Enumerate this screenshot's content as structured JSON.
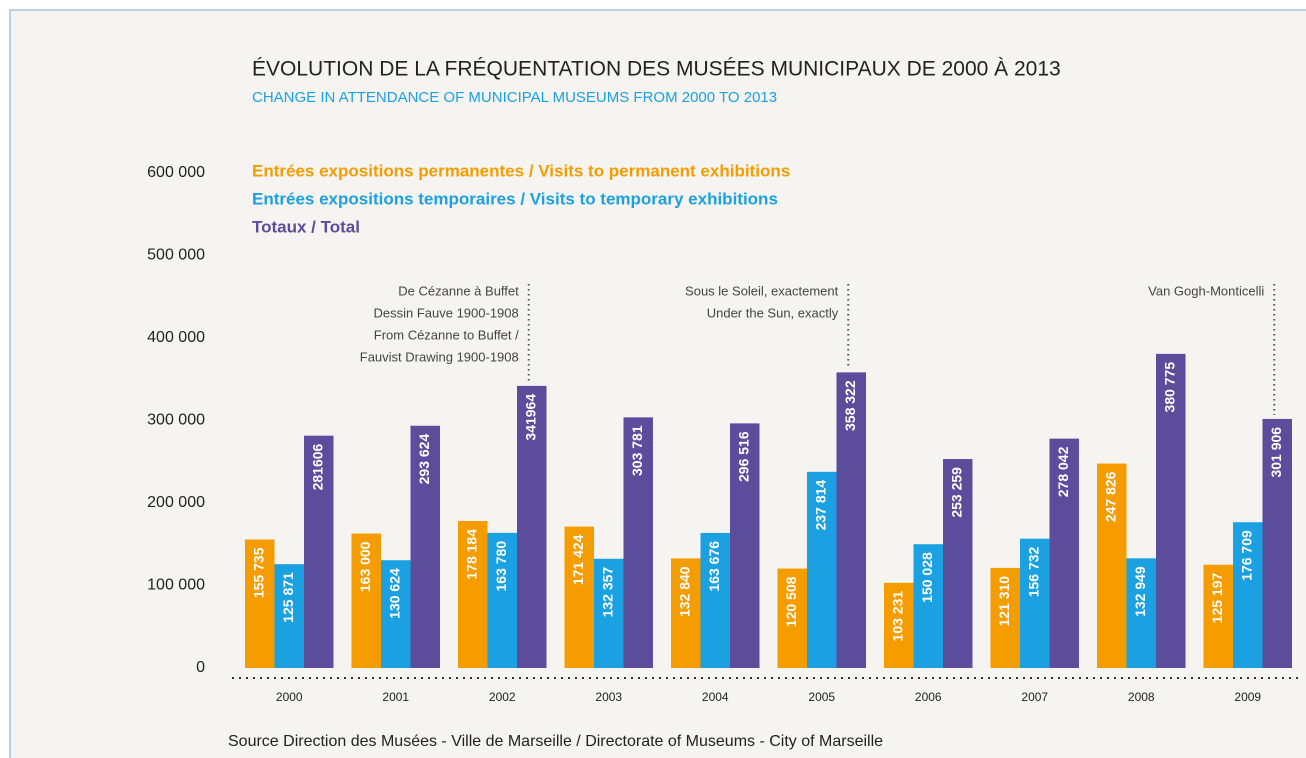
{
  "chart_data": {
    "type": "bar",
    "title": "ÉVOLUTION DE LA FRÉQUENTATION DES MUSÉES MUNICIPAUX DE 2000 À 2013",
    "subtitle": "CHANGE IN ATTENDANCE OF MUNICIPAL MUSEUMS FROM 2000 TO 2013",
    "source": "Source Direction des Musées - Ville de Marseille / Directorate of Museums - City of Marseille",
    "categories": [
      "2000",
      "2001",
      "2002",
      "2003",
      "2004",
      "2005",
      "2006",
      "2007",
      "2008",
      "2009"
    ],
    "series": [
      {
        "name": "Entrées expositions permanentes / Visits to permanent exhibitions",
        "color": "#f59c00",
        "values": [
          155735,
          163000,
          178184,
          171424,
          132840,
          120508,
          103231,
          121310,
          247826,
          125197
        ],
        "value_labels": [
          "155 735",
          "163 000",
          "178 184",
          "171 424",
          "132 840",
          "120 508",
          "103 231",
          "121 310",
          "247 826",
          "125 197"
        ]
      },
      {
        "name": "Entrées expositions temporaires / Visits to temporary exhibitions",
        "color": "#1ba1e2",
        "values": [
          125871,
          130624,
          163780,
          132357,
          163676,
          237814,
          150028,
          156732,
          132949,
          176709
        ],
        "value_labels": [
          "125 871",
          "130 624",
          "163 780",
          "132 357",
          "163 676",
          "237 814",
          "150 028",
          "156 732",
          "132 949",
          "176 709"
        ]
      },
      {
        "name": "Totaux / Total",
        "color": "#5b4d9c",
        "values": [
          281606,
          293624,
          341964,
          303781,
          296516,
          358322,
          253259,
          278042,
          380775,
          301906
        ],
        "value_labels": [
          "281606",
          "293 624",
          "341964",
          "303 781",
          "296 516",
          "358 322",
          "253 259",
          "278 042",
          "380 775",
          "301 906"
        ]
      }
    ],
    "ylim": [
      0,
      600000
    ],
    "yticks": [
      0,
      {
        "value": 100000,
        "label": "100 000"
      },
      {
        "value": 200000,
        "label": "200 000"
      },
      {
        "value": 300000,
        "label": "300 000"
      },
      {
        "value": 400000,
        "label": "400 000"
      },
      {
        "value": 500000,
        "label": "500 000"
      },
      {
        "value": 600000,
        "label": "600 000"
      }
    ],
    "grid": false,
    "annotations": [
      {
        "lines": [
          "De Cézanne à Buffet",
          "Dessin Fauve 1900-1908",
          "From Cézanne to Buffet /",
          "Fauvist Drawing 1900-1908"
        ]
      },
      {
        "lines": [
          "Sous le Soleil, exactement",
          "Under the Sun, exactly"
        ]
      },
      {
        "lines": [
          "Van Gogh-Monticelli"
        ]
      }
    ]
  }
}
